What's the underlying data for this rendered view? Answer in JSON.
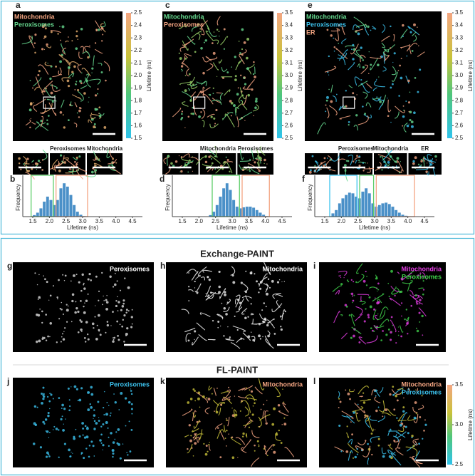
{
  "top": {
    "panels": [
      {
        "letter": "a",
        "legend": [
          {
            "name": "Mitochondria",
            "color": "#f4a582"
          },
          {
            "name": "Peroxisomes",
            "color": "#66d98f"
          }
        ],
        "colorbar": {
          "label": "Lifetime (ns)",
          "ticks": [
            2.5,
            2.4,
            2.3,
            2.2,
            2.1,
            {
              "value": 2,
              "label": "2.0"
            },
            1.9,
            1.8,
            1.7,
            1.6,
            1.5
          ],
          "lim": [
            1.5,
            2.5
          ]
        },
        "insets": [
          "Peroxisomes",
          "Mitochondria"
        ]
      },
      {
        "letter": "c",
        "legend": [
          {
            "name": "Mitochondria",
            "color": "#66d98f"
          },
          {
            "name": "Peroxisomes",
            "color": "#f4a582"
          }
        ],
        "colorbar": {
          "label": "Lifetime (ns)",
          "ticks": [
            3.5,
            3.4,
            3.3,
            3.2,
            3.1,
            {
              "value": 3,
              "label": "3.0"
            },
            2.9,
            2.8,
            2.7,
            2.6,
            2.5
          ],
          "lim": [
            2.5,
            3.5
          ]
        },
        "insets": [
          "Mitochondria",
          "Peroxisomes"
        ]
      },
      {
        "letter": "e",
        "legend": [
          {
            "name": "Mitochondria",
            "color": "#66d98f"
          },
          {
            "name": "Peroxisomes",
            "color": "#3cc3ef"
          },
          {
            "name": "ER",
            "color": "#f4a582"
          }
        ],
        "colorbar": {
          "label": "Lifetime (ns)",
          "ticks": [
            3.5,
            3.4,
            3.3,
            3.2,
            3.1,
            {
              "value": 3,
              "label": "3.0"
            },
            2.9,
            2.8,
            2.7,
            2.6,
            2.5
          ],
          "lim": [
            2.5,
            3.5
          ]
        },
        "insets": [
          "Peroxisomes",
          "Mitochondria",
          "ER"
        ]
      }
    ],
    "histograms": [
      {
        "letter": "b",
        "type": "histogram",
        "xlabel": "Lifetime (ns)",
        "ylabel": "Frequency",
        "xlim": [
          1.2,
          4.8
        ],
        "ylim": [
          0,
          1.15
        ],
        "xticks": [
          1.5,
          {
            "value": 2,
            "label": "2.0"
          },
          2.5,
          {
            "value": 3,
            "label": "3.0"
          },
          3.5,
          {
            "value": 4,
            "label": "4.0"
          },
          4.5
        ],
        "color": "#4a90c8",
        "bins": [
          1.5,
          1.6,
          1.7,
          1.8,
          1.9,
          2.0,
          2.1,
          2.2,
          2.3,
          2.4,
          2.5,
          2.6,
          2.7,
          2.8,
          2.9,
          3.0,
          3.1,
          3.2
        ],
        "counts": [
          0.05,
          0.12,
          0.25,
          0.45,
          0.6,
          0.5,
          0.35,
          0.5,
          0.85,
          1.0,
          0.9,
          0.65,
          0.35,
          0.15,
          0.06,
          0.02,
          0.01
        ],
        "gates": [
          {
            "range": [
              1.45,
              2.12
            ],
            "color": "#5fce6a"
          },
          {
            "range": [
              2.2,
              3.15
            ],
            "color": "#f4a582"
          }
        ]
      },
      {
        "letter": "d",
        "type": "histogram",
        "xlabel": "Lifetime (ns)",
        "ylabel": "Frequency",
        "xlim": [
          1.2,
          4.8
        ],
        "ylim": [
          0,
          1.15
        ],
        "xticks": [
          1.5,
          {
            "value": 2,
            "label": "2.0"
          },
          2.5,
          {
            "value": 3,
            "label": "3.0"
          },
          3.5,
          {
            "value": 4,
            "label": "4.0"
          },
          4.5
        ],
        "color": "#4a90c8",
        "bins": [
          2.3,
          2.4,
          2.5,
          2.6,
          2.7,
          2.8,
          2.9,
          3.0,
          3.1,
          3.2,
          3.3,
          3.4,
          3.5,
          3.6,
          3.7,
          3.8,
          3.9,
          4.0,
          4.1
        ],
        "counts": [
          0.05,
          0.15,
          0.35,
          0.6,
          0.85,
          1.0,
          0.8,
          0.5,
          0.3,
          0.25,
          0.28,
          0.3,
          0.3,
          0.27,
          0.2,
          0.12,
          0.06,
          0.02
        ],
        "gates": [
          {
            "range": [
              2.4,
              3.22
            ],
            "color": "#5fce6a"
          },
          {
            "range": [
              3.3,
              4.12
            ],
            "color": "#f4a582"
          }
        ]
      },
      {
        "letter": "f",
        "type": "histogram",
        "xlabel": "Lifetime (ns)",
        "ylabel": "Frequency",
        "xlim": [
          1.2,
          4.8
        ],
        "ylim": [
          0,
          1.15
        ],
        "xticks": [
          1.5,
          {
            "value": 2,
            "label": "2.0"
          },
          2.5,
          {
            "value": 3,
            "label": "3.0"
          },
          3.5,
          {
            "value": 4,
            "label": "4.0"
          },
          4.5
        ],
        "color": "#4a90c8",
        "bins": [
          1.7,
          1.8,
          1.9,
          2.0,
          2.1,
          2.2,
          2.3,
          2.4,
          2.5,
          2.6,
          2.7,
          2.8,
          2.9,
          3.0,
          3.1,
          3.2,
          3.3,
          3.4,
          3.5,
          3.6,
          3.7,
          3.8,
          3.9,
          4.0,
          4.1
        ],
        "counts": [
          0.1,
          0.2,
          0.4,
          0.55,
          0.65,
          0.72,
          0.7,
          0.6,
          0.55,
          0.75,
          0.85,
          0.7,
          0.4,
          0.3,
          0.35,
          0.4,
          0.42,
          0.38,
          0.3,
          0.2,
          0.12,
          0.06,
          0.03,
          0.01
        ],
        "gates": [
          {
            "range": [
              1.65,
              2.47
            ],
            "color": "#3cc3ef"
          },
          {
            "range": [
              2.55,
              2.97
            ],
            "color": "#5fce6a"
          },
          {
            "range": [
              3.05,
              4.2
            ],
            "color": "#f4a582"
          }
        ]
      }
    ]
  },
  "bottom": {
    "rows": [
      {
        "heading": "Exchange-PAINT",
        "panels": [
          {
            "letter": "g",
            "legend": [
              {
                "name": "Peroxisomes",
                "color": "#ffffff"
              }
            ]
          },
          {
            "letter": "h",
            "legend": [
              {
                "name": "Mitochondria",
                "color": "#ffffff"
              }
            ]
          },
          {
            "letter": "i",
            "legend": [
              {
                "name": "Mitochondria",
                "color": "#e03ce0"
              },
              {
                "name": "Peroxisomes",
                "color": "#3fd04a"
              }
            ]
          }
        ]
      },
      {
        "heading": "FL-PAINT",
        "panels": [
          {
            "letter": "j",
            "legend": [
              {
                "name": "Peroxisomes",
                "color": "#3cc3ef"
              }
            ]
          },
          {
            "letter": "k",
            "legend": [
              {
                "name": "Mitochondria",
                "color": "#f4a582"
              }
            ]
          },
          {
            "letter": "l",
            "legend": [
              {
                "name": "Mitochondria",
                "color": "#f4a582"
              },
              {
                "name": "Peroxisomes",
                "color": "#3cc3ef"
              }
            ]
          }
        ]
      }
    ],
    "colorbar": {
      "label": "Lifetime (ns)",
      "ticks": [
        3.5,
        {
          "value": 3,
          "label": "3.0"
        },
        2.5
      ],
      "lim": [
        2.5,
        3.5
      ]
    }
  }
}
